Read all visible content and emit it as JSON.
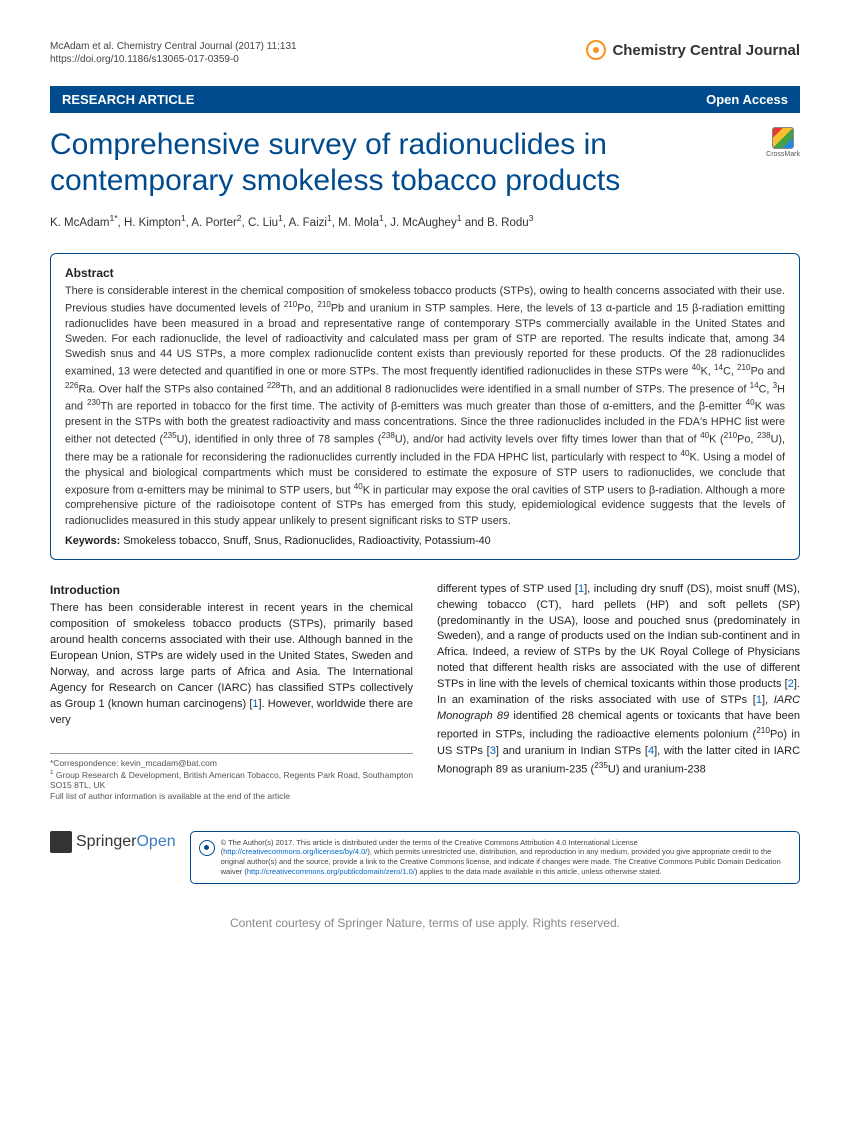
{
  "header": {
    "citation_line1": "McAdam et al. Chemistry Central Journal  (2017) 11:131",
    "citation_line2": "https://doi.org/10.1186/s13065-017-0359-0",
    "journal_name": "Chemistry Central Journal"
  },
  "banner": {
    "article_type": "RESEARCH ARTICLE",
    "access": "Open Access"
  },
  "title": "Comprehensive survey of radionuclides in contemporary smokeless tobacco products",
  "crossmark_label": "CrossMark",
  "authors_html": "K. McAdam<sup>1*</sup>, H. Kimpton<sup>1</sup>, A. Porter<sup>2</sup>, C. Liu<sup>1</sup>, A. Faizi<sup>1</sup>, M. Mola<sup>1</sup>, J. McAughey<sup>1</sup> and B. Rodu<sup>3</sup>",
  "abstract": {
    "heading": "Abstract",
    "text_html": "There is considerable interest in the chemical composition of smokeless tobacco products (STPs), owing to health concerns associated with their use. Previous studies have documented levels of <sup>210</sup>Po, <sup>210</sup>Pb and uranium in STP samples. Here, the levels of 13 α-particle and 15 β-radiation emitting radionuclides have been measured in a broad and representative range of contemporary STPs commercially available in the United States and Sweden. For each radionuclide, the level of radioactivity and calculated mass per gram of STP are reported. The results indicate that, among 34 Swedish snus and 44 US STPs, a more complex radionuclide content exists than previously reported for these products. Of the 28 radionuclides examined, 13 were detected and quantified in one or more STPs. The most frequently identified radionuclides in these STPs were <sup>40</sup>K, <sup>14</sup>C, <sup>210</sup>Po and <sup>226</sup>Ra. Over half the STPs also contained <sup>228</sup>Th, and an additional 8 radionuclides were identified in a small number of STPs. The presence of <sup>14</sup>C, <sup>3</sup>H and <sup>230</sup>Th are reported in tobacco for the first time. The activity of β-emitters was much greater than those of α-emitters, and the β-emitter <sup>40</sup>K was present in the STPs with both the greatest radioactivity and mass concentrations. Since the three radionuclides included in the FDA's HPHC list were either not detected (<sup>235</sup>U), identified in only three of 78 samples (<sup>238</sup>U), and/or had activity levels over fifty times lower than that of <sup>40</sup>K (<sup>210</sup>Po, <sup>238</sup>U), there may be a rationale for reconsidering the radionuclides currently included in the FDA HPHC list, particularly with respect to <sup>40</sup>K. Using a model of the physical and biological compartments which must be considered to estimate the exposure of STP users to radionuclides, we conclude that exposure from α-emitters may be minimal to STP users, but <sup>40</sup>K in particular may expose the oral cavities of STP users to β-radiation. Although a more comprehensive picture of the radioisotope content of STPs has emerged from this study, epidemiological evidence suggests that the levels of radionuclides measured in this study appear unlikely to present significant risks to STP users.",
    "keywords_label": "Keywords:",
    "keywords": "Smokeless tobacco, Snuff, Snus, Radionuclides, Radioactivity, Potassium-40"
  },
  "body": {
    "intro_heading": "Introduction",
    "col1_html": "There has been considerable interest in recent years in the chemical composition of smokeless tobacco products (STPs), primarily based around health concerns associated with their use. Although banned in the European Union, STPs are widely used in the United States, Sweden and Norway, and across large parts of Africa and Asia. The International Agency for Research on Cancer (IARC) has classified STPs collectively as Group 1 (known human carcinogens) [<span class=\"ref\">1</span>]. However, worldwide there are very",
    "col2_html": "different types of STP used [<span class=\"ref\">1</span>], including dry snuff (DS), moist snuff (MS), chewing tobacco (CT), hard pellets (HP) and soft pellets (SP) (predominantly in the USA), loose and pouched snus (predominately in Sweden), and a range of products used on the Indian sub-continent and in Africa. Indeed, a review of STPs by the UK Royal College of Physicians noted that different health risks are associated with the use of different STPs in line with the levels of chemical toxicants within those products [<span class=\"ref\">2</span>]. In an examination of the risks associated with use of STPs [<span class=\"ref\">1</span>], <i>IARC Monograph 89</i> identified 28 chemical agents or toxicants that have been reported in STPs, including the radioactive elements polonium (<sup>210</sup>Po) in US STPs [<span class=\"ref\">3</span>] and uranium in Indian STPs [<span class=\"ref\">4</span>], with the latter cited in IARC Monograph 89 as uranium-235 (<sup>235</sup>U) and uranium-238"
  },
  "correspondence": {
    "line1": "*Correspondence: kevin_mcadam@bat.com",
    "line2_html": "<sup>1</sup> Group Research & Development, British American Tobacco, Regents Park Road, Southampton SO15 8TL, UK",
    "line3": "Full list of author information is available at the end of the article"
  },
  "footer": {
    "springer": "Springer",
    "open": "Open",
    "license_html": "© The Author(s) 2017. This article is distributed under the terms of the Creative Commons Attribution 4.0 International License (<a>http://creativecommons.org/licenses/by/4.0/</a>), which permits unrestricted use, distribution, and reproduction in any medium, provided you give appropriate credit to the original author(s) and the source, provide a link to the Creative Commons license, and indicate if changes were made. The Creative Commons Public Domain Dedication waiver (<a>http://creativecommons.org/publicdomain/zero/1.0/</a>) applies to the data made available in this article, unless otherwise stated."
  },
  "courtesy": "Content courtesy of Springer Nature, terms of use apply. Rights reserved.",
  "colors": {
    "brand_blue": "#004b8d",
    "link_blue": "#0066cc",
    "brand_orange": "#f7931e"
  }
}
